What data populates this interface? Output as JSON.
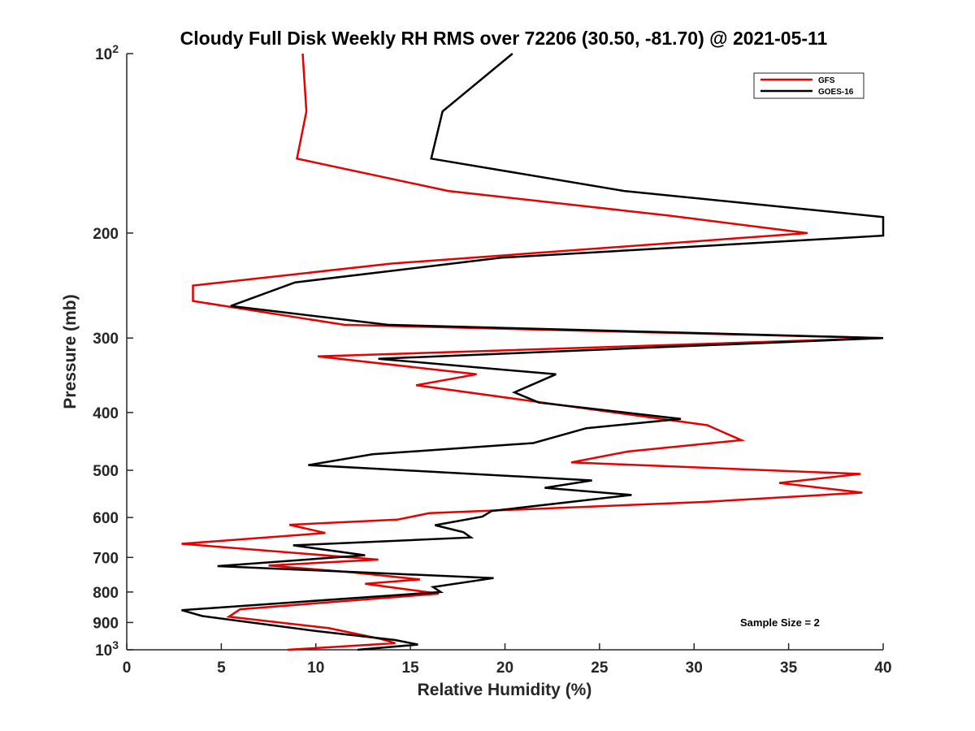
{
  "chart_data": {
    "type": "line",
    "title": "Cloudy Full Disk Weekly RH RMS over 72206 (30.50, -81.70) @ 2021-05-11",
    "xlabel": "Relative Humidity (%)",
    "ylabel": "Pressure (mb)",
    "xlim": [
      0,
      40
    ],
    "ylim": [
      100,
      1000
    ],
    "yscale": "log",
    "y_reversed": true,
    "xticks": [
      0,
      5,
      10,
      15,
      20,
      25,
      30,
      35,
      40
    ],
    "xtick_labels": [
      "0",
      "5",
      "10",
      "15",
      "20",
      "25",
      "30",
      "35",
      "40"
    ],
    "yticks": [
      100,
      200,
      300,
      400,
      500,
      600,
      700,
      800,
      900,
      1000
    ],
    "ytick_labels": [
      {
        "base": "10",
        "exp": "2"
      },
      {
        "base": "200",
        "exp": ""
      },
      {
        "base": "300",
        "exp": ""
      },
      {
        "base": "400",
        "exp": ""
      },
      {
        "base": "500",
        "exp": ""
      },
      {
        "base": "600",
        "exp": ""
      },
      {
        "base": "700",
        "exp": ""
      },
      {
        "base": "800",
        "exp": ""
      },
      {
        "base": "900",
        "exp": ""
      },
      {
        "base": "10",
        "exp": "3"
      }
    ],
    "grid": false,
    "legend_position": "top-right",
    "annotation": "Sample Size = 2",
    "series": [
      {
        "name": "GFS",
        "color": "#e60000",
        "points": [
          [
            9.3,
            100
          ],
          [
            9.5,
            125
          ],
          [
            9.0,
            150
          ],
          [
            17.0,
            170
          ],
          [
            28.7,
            187
          ],
          [
            36.0,
            200
          ],
          [
            14.0,
            225
          ],
          [
            3.5,
            245
          ],
          [
            3.5,
            260
          ],
          [
            11.5,
            285
          ],
          [
            40.0,
            300
          ],
          [
            10.1,
            322
          ],
          [
            18.5,
            345
          ],
          [
            15.3,
            360
          ],
          [
            30.7,
            420
          ],
          [
            32.5,
            445
          ],
          [
            26.5,
            465
          ],
          [
            23.5,
            485
          ],
          [
            38.8,
            507
          ],
          [
            34.5,
            525
          ],
          [
            38.9,
            545
          ],
          [
            30.5,
            565
          ],
          [
            16.0,
            590
          ],
          [
            14.3,
            605
          ],
          [
            8.6,
            617
          ],
          [
            10.5,
            637
          ],
          [
            2.9,
            664
          ],
          [
            13.3,
            706
          ],
          [
            7.5,
            722
          ],
          [
            12.0,
            742
          ],
          [
            15.5,
            762
          ],
          [
            12.6,
            775
          ],
          [
            16.5,
            805
          ],
          [
            6.0,
            855
          ],
          [
            5.4,
            880
          ],
          [
            10.7,
            920
          ],
          [
            13.5,
            960
          ],
          [
            14.2,
            975
          ],
          [
            8.5,
            1000
          ]
        ]
      },
      {
        "name": "GOES-16",
        "color": "#000000",
        "points": [
          [
            20.4,
            100
          ],
          [
            16.7,
            125
          ],
          [
            16.1,
            150
          ],
          [
            26.3,
            170
          ],
          [
            40.0,
            188
          ],
          [
            40.0,
            202
          ],
          [
            19.8,
            220
          ],
          [
            8.9,
            242
          ],
          [
            5.5,
            265
          ],
          [
            13.8,
            285
          ],
          [
            40.0,
            300
          ],
          [
            13.3,
            325
          ],
          [
            22.7,
            345
          ],
          [
            20.5,
            370
          ],
          [
            21.8,
            385
          ],
          [
            29.3,
            410
          ],
          [
            24.3,
            425
          ],
          [
            21.5,
            450
          ],
          [
            13.0,
            470
          ],
          [
            9.6,
            490
          ],
          [
            24.6,
            520
          ],
          [
            22.1,
            535
          ],
          [
            26.7,
            550
          ],
          [
            19.3,
            585
          ],
          [
            18.8,
            598
          ],
          [
            16.3,
            618
          ],
          [
            17.8,
            635
          ],
          [
            18.2,
            648
          ],
          [
            8.8,
            668
          ],
          [
            12.6,
            694
          ],
          [
            4.8,
            724
          ],
          [
            19.4,
            758
          ],
          [
            16.2,
            785
          ],
          [
            16.6,
            800
          ],
          [
            2.9,
            858
          ],
          [
            4.0,
            878
          ],
          [
            10.0,
            930
          ],
          [
            14.2,
            963
          ],
          [
            15.4,
            980
          ],
          [
            12.2,
            1000
          ]
        ]
      }
    ]
  }
}
